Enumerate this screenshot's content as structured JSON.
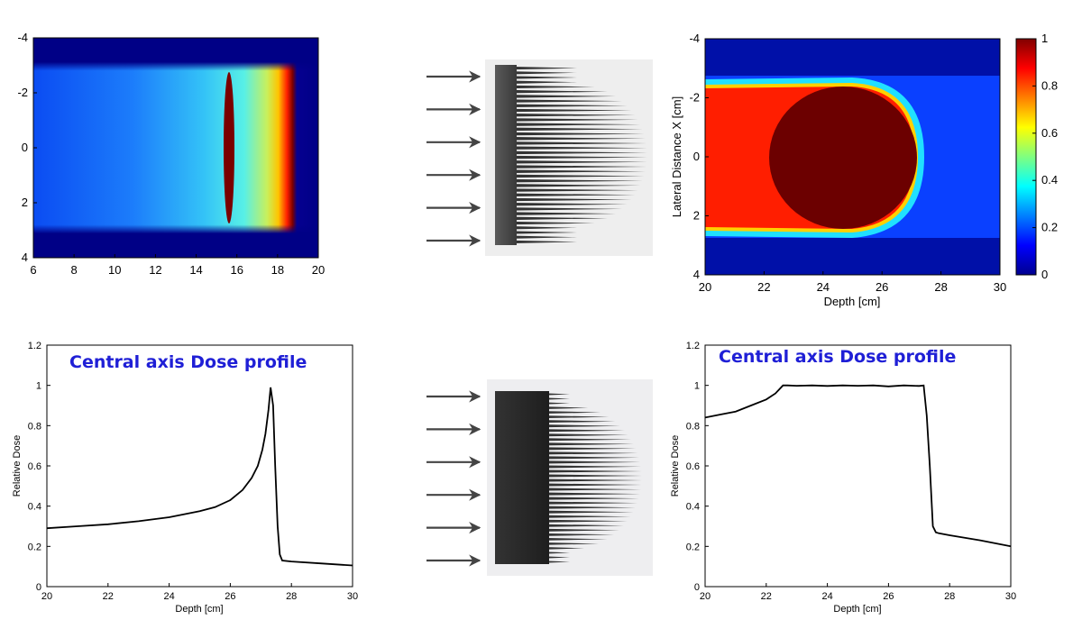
{
  "chart_data": [
    {
      "type": "heatmap",
      "name": "dose map - single edge",
      "title": "",
      "xlabel": "",
      "ylabel": "",
      "xlim": [
        6,
        20
      ],
      "ylim": [
        -4,
        4
      ],
      "x_ticks": [
        "6",
        "8",
        "10",
        "12",
        "14",
        "16",
        "18",
        "20"
      ],
      "y_ticks": [
        "-4",
        "-2",
        "0",
        "2",
        "4"
      ],
      "beam_half_width": 3,
      "dose_peak_depth": 15.6
    },
    {
      "type": "heatmap",
      "name": "dose map - spread-out",
      "title": "",
      "xlabel": "Depth [cm]",
      "ylabel": "Lateral Distance X [cm]",
      "xlim": [
        20,
        30
      ],
      "ylim": [
        -4,
        4
      ],
      "x_ticks": [
        "20",
        "22",
        "24",
        "26",
        "28",
        "30"
      ],
      "y_ticks": [
        "-4",
        "-2",
        "0",
        "2",
        "4"
      ],
      "colorbar_ticks": [
        "0",
        "0.2",
        "0.4",
        "0.6",
        "0.8",
        "1"
      ],
      "colorbar_range": [
        0,
        1
      ],
      "high_dose_region_center": [
        25,
        0
      ],
      "high_dose_region_radius": 2.5
    },
    {
      "type": "line",
      "name": "central axis profile - pristine peak",
      "title": "Central axis Dose profile",
      "xlabel": "Depth [cm]",
      "ylabel": "Relative Dose",
      "xlim": [
        20,
        30
      ],
      "ylim": [
        0,
        1.2
      ],
      "x_ticks": [
        "20",
        "22",
        "24",
        "26",
        "28",
        "30"
      ],
      "y_ticks": [
        "0",
        "0.2",
        "0.4",
        "0.6",
        "0.8",
        "1",
        "1.2"
      ],
      "x": [
        20,
        21,
        22,
        23,
        24,
        25,
        25.5,
        26,
        26.4,
        26.7,
        26.9,
        27.05,
        27.15,
        27.25,
        27.32,
        27.4,
        27.47,
        27.55,
        27.62,
        27.7,
        28,
        29,
        30
      ],
      "y": [
        0.29,
        0.3,
        0.31,
        0.325,
        0.345,
        0.375,
        0.395,
        0.43,
        0.48,
        0.54,
        0.6,
        0.68,
        0.76,
        0.88,
        0.99,
        0.9,
        0.6,
        0.3,
        0.16,
        0.13,
        0.125,
        0.115,
        0.105
      ]
    },
    {
      "type": "line",
      "name": "central axis profile - spread-out",
      "title": "Central axis Dose profile",
      "xlabel": "Depth [cm]",
      "ylabel": "Relative Dose",
      "xlim": [
        20,
        30
      ],
      "ylim": [
        0,
        1.2
      ],
      "x_ticks": [
        "20",
        "22",
        "24",
        "26",
        "28",
        "30"
      ],
      "y_ticks": [
        "0",
        "0.2",
        "0.4",
        "0.6",
        "0.8",
        "1",
        "1.2"
      ],
      "x": [
        20,
        20.5,
        21,
        21.5,
        22,
        22.3,
        22.55,
        22.7,
        23,
        23.5,
        24,
        24.5,
        25,
        25.5,
        26,
        26.5,
        27,
        27.15,
        27.25,
        27.35,
        27.45,
        27.55,
        27.65,
        28,
        29,
        30
      ],
      "y": [
        0.84,
        0.855,
        0.87,
        0.9,
        0.93,
        0.96,
        1.0,
        1.0,
        0.998,
        1.0,
        0.997,
        1.0,
        0.998,
        1.0,
        0.995,
        1.0,
        0.997,
        1.0,
        0.85,
        0.6,
        0.3,
        0.27,
        0.265,
        0.255,
        0.23,
        0.2
      ]
    }
  ],
  "diagram": {
    "arrows_per_beam": 6,
    "filter_teeth_count": 38,
    "colors": {
      "arrow": "#444444",
      "filter_top": "#4a4a4a",
      "filter_bottom": "#2a2a2a",
      "teeth": "#333333",
      "title": "#1f1fd6"
    }
  }
}
